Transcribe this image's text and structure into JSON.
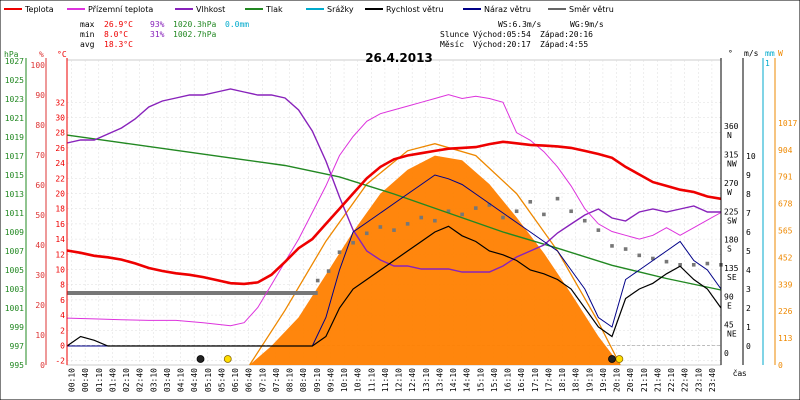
{
  "chart_data": {
    "type": "line",
    "title": "26.4.2013",
    "x_axis": {
      "label": "čas",
      "ticks": [
        "00:10",
        "00:40",
        "01:10",
        "01:40",
        "02:10",
        "02:40",
        "03:10",
        "03:40",
        "04:10",
        "04:40",
        "05:10",
        "05:40",
        "06:10",
        "06:40",
        "07:10",
        "07:40",
        "08:10",
        "08:40",
        "09:10",
        "09:40",
        "10:10",
        "10:40",
        "11:10",
        "11:40",
        "12:10",
        "12:40",
        "13:10",
        "13:40",
        "14:10",
        "14:40",
        "15:10",
        "15:40",
        "16:10",
        "16:40",
        "17:10",
        "17:40",
        "18:10",
        "18:40",
        "19:10",
        "19:40",
        "20:10",
        "20:40",
        "21:10",
        "21:40",
        "22:10",
        "22:40",
        "23:10",
        "23:40"
      ]
    },
    "legend": [
      {
        "name": "Teplota",
        "color": "#ee0000"
      },
      {
        "name": "Přízemní teplota",
        "color": "#dd33dd"
      },
      {
        "name": "Vlhkost",
        "color": "#8822bb"
      },
      {
        "name": "Tlak",
        "color": "#228822"
      },
      {
        "name": "Srážky",
        "color": "#00aacc"
      },
      {
        "name": "Rychlost větru",
        "color": "#000000"
      },
      {
        "name": "Náraz větru",
        "color": "#000088"
      },
      {
        "name": "Směr větru",
        "color": "#666666"
      }
    ],
    "stats": {
      "max": {
        "label": "max",
        "temp": "26.9°C",
        "hum": "93%",
        "press": "1020.3hPa",
        "rain": "0.0mm"
      },
      "min": {
        "label": "min",
        "temp": "8.0°C",
        "hum": "31%",
        "press": "1002.7hPa"
      },
      "avg": {
        "label": "avg",
        "temp": "18.3°C"
      }
    },
    "wind_info": {
      "ws": "WS:6.3m/s",
      "wg": "WG:9m/s"
    },
    "sun": {
      "label": "Slunce",
      "rise": "Východ:05:54",
      "set": "Západ:20:16"
    },
    "moon": {
      "label": "Měsíc",
      "rise": "Východ:20:17",
      "set": "Západ:4:55"
    },
    "axes": {
      "pressure": {
        "unit": "hPa",
        "color": "#228822",
        "ticks": [
          "1027",
          "1025",
          "1023",
          "1021",
          "1019",
          "1017",
          "1015",
          "1013",
          "1011",
          "1009",
          "1007",
          "1005",
          "1003",
          "1001",
          "999",
          "997",
          "995"
        ]
      },
      "humidity": {
        "unit": "%",
        "color": "#dd3333",
        "ticks": [
          "100",
          "90",
          "80",
          "70",
          "60",
          "50",
          "40",
          "30",
          "20",
          "10",
          "0"
        ]
      },
      "temperature": {
        "unit": "°C",
        "color": "#ee0000",
        "ticks": [
          "32",
          "30",
          "28",
          "26",
          "24",
          "22",
          "20",
          "18",
          "16",
          "14",
          "12",
          "10",
          "8",
          "6",
          "4",
          "2",
          "0",
          "-2"
        ]
      },
      "direction": {
        "unit": "°",
        "ticks": [
          "360",
          "315",
          "270",
          "225",
          "180",
          "135",
          "90",
          "45",
          "0"
        ],
        "names": [
          "N",
          "NW",
          "W",
          "SW",
          "S",
          "SE",
          "E",
          "NE"
        ]
      },
      "wind": {
        "unit": "m/s",
        "color": "#000000",
        "ticks": [
          "10",
          "9",
          "8",
          "7",
          "6",
          "5",
          "4",
          "3",
          "2",
          "1",
          "0"
        ]
      },
      "rain": {
        "unit": "mm",
        "color": "#00aacc",
        "ticks": [
          "1"
        ]
      },
      "solar": {
        "unit": "W",
        "color": "#ee8800",
        "ticks": [
          "1017",
          "904",
          "791",
          "678",
          "565",
          "452",
          "339",
          "226",
          "113",
          "0"
        ]
      }
    },
    "series": {
      "temperature": [
        [
          0,
          12.5
        ],
        [
          0.5,
          12.2
        ],
        [
          1,
          11.8
        ],
        [
          1.5,
          11.6
        ],
        [
          2,
          11.3
        ],
        [
          2.5,
          10.8
        ],
        [
          3,
          10.2
        ],
        [
          3.5,
          9.8
        ],
        [
          4,
          9.5
        ],
        [
          4.5,
          9.3
        ],
        [
          5,
          9.0
        ],
        [
          5.5,
          8.6
        ],
        [
          6,
          8.2
        ],
        [
          6.5,
          8.1
        ],
        [
          7,
          8.3
        ],
        [
          7.5,
          9.3
        ],
        [
          8,
          11.0
        ],
        [
          8.5,
          12.8
        ],
        [
          9,
          14.0
        ],
        [
          9.5,
          16.0
        ],
        [
          10,
          18.0
        ],
        [
          10.5,
          20.0
        ],
        [
          11,
          22.0
        ],
        [
          11.5,
          23.5
        ],
        [
          12,
          24.5
        ],
        [
          12.5,
          25.0
        ],
        [
          13,
          25.3
        ],
        [
          13.5,
          25.6
        ],
        [
          14,
          25.9
        ],
        [
          14.5,
          26.0
        ],
        [
          15,
          26.1
        ],
        [
          15.5,
          26.5
        ],
        [
          16,
          26.8
        ],
        [
          16.5,
          26.6
        ],
        [
          17,
          26.4
        ],
        [
          17.5,
          26.3
        ],
        [
          18,
          26.2
        ],
        [
          18.5,
          26.0
        ],
        [
          19,
          25.6
        ],
        [
          19.5,
          25.2
        ],
        [
          20,
          24.7
        ],
        [
          20.5,
          23.5
        ],
        [
          21,
          22.5
        ],
        [
          21.5,
          21.5
        ],
        [
          22,
          21.0
        ],
        [
          22.5,
          20.5
        ],
        [
          23,
          20.2
        ],
        [
          23.5,
          19.6
        ],
        [
          24,
          19.3
        ]
      ],
      "ground_temperature": [
        [
          0,
          3.6
        ],
        [
          1,
          3.5
        ],
        [
          2,
          3.4
        ],
        [
          3,
          3.3
        ],
        [
          4,
          3.3
        ],
        [
          5,
          3.0
        ],
        [
          5.5,
          2.8
        ],
        [
          6,
          2.6
        ],
        [
          6.5,
          3.0
        ],
        [
          7,
          5.0
        ],
        [
          7.5,
          8.0
        ],
        [
          8,
          11.0
        ],
        [
          8.5,
          14.0
        ],
        [
          9,
          17.5
        ],
        [
          9.5,
          21.0
        ],
        [
          10,
          25.0
        ],
        [
          10.5,
          27.5
        ],
        [
          11,
          29.5
        ],
        [
          11.5,
          30.5
        ],
        [
          12,
          31.0
        ],
        [
          12.5,
          31.5
        ],
        [
          13,
          32.0
        ],
        [
          13.5,
          32.5
        ],
        [
          14,
          33.0
        ],
        [
          14.5,
          32.5
        ],
        [
          15,
          32.8
        ],
        [
          15.5,
          32.5
        ],
        [
          16,
          32.0
        ],
        [
          16.5,
          28.0
        ],
        [
          17,
          27.0
        ],
        [
          17.5,
          25.5
        ],
        [
          18,
          23.5
        ],
        [
          18.5,
          21.0
        ],
        [
          19,
          18.0
        ],
        [
          19.5,
          16.0
        ],
        [
          20,
          15.0
        ],
        [
          20.5,
          14.5
        ],
        [
          21,
          14.0
        ],
        [
          21.5,
          14.5
        ],
        [
          22,
          15.5
        ],
        [
          22.5,
          14.5
        ],
        [
          23,
          15.5
        ],
        [
          23.5,
          16.5
        ],
        [
          24,
          17.5
        ]
      ],
      "humidity": [
        [
          0,
          74
        ],
        [
          0.5,
          75
        ],
        [
          1,
          75
        ],
        [
          1.5,
          77
        ],
        [
          2,
          79
        ],
        [
          2.5,
          82
        ],
        [
          3,
          86
        ],
        [
          3.5,
          88
        ],
        [
          4,
          89
        ],
        [
          4.5,
          90
        ],
        [
          5,
          90
        ],
        [
          5.5,
          91
        ],
        [
          6,
          92
        ],
        [
          6.5,
          91
        ],
        [
          7,
          90
        ],
        [
          7.5,
          90
        ],
        [
          8,
          89
        ],
        [
          8.5,
          85
        ],
        [
          9,
          78
        ],
        [
          9.5,
          68
        ],
        [
          10,
          56
        ],
        [
          10.5,
          45
        ],
        [
          11,
          38
        ],
        [
          11.5,
          35
        ],
        [
          12,
          33
        ],
        [
          12.5,
          33
        ],
        [
          13,
          32
        ],
        [
          13.5,
          32
        ],
        [
          14,
          32
        ],
        [
          14.5,
          31
        ],
        [
          15,
          31
        ],
        [
          15.5,
          31
        ],
        [
          16,
          33
        ],
        [
          16.5,
          36
        ],
        [
          17,
          38
        ],
        [
          17.5,
          40
        ],
        [
          18,
          44
        ],
        [
          18.5,
          47
        ],
        [
          19,
          50
        ],
        [
          19.5,
          52
        ],
        [
          20,
          49
        ],
        [
          20.5,
          48
        ],
        [
          21,
          51
        ],
        [
          21.5,
          52
        ],
        [
          22,
          51
        ],
        [
          22.5,
          52
        ],
        [
          23,
          53
        ],
        [
          23.5,
          51
        ],
        [
          24,
          51
        ]
      ],
      "pressure": [
        [
          0,
          1019.2
        ],
        [
          2,
          1018.4
        ],
        [
          4,
          1017.6
        ],
        [
          6,
          1016.8
        ],
        [
          8,
          1016.0
        ],
        [
          10,
          1014.8
        ],
        [
          12,
          1013.0
        ],
        [
          14,
          1011.0
        ],
        [
          16,
          1009.0
        ],
        [
          18,
          1007.3
        ],
        [
          20,
          1005.5
        ],
        [
          22,
          1004.1
        ],
        [
          24,
          1002.9
        ]
      ],
      "wind_speed": [
        [
          0,
          0.0
        ],
        [
          0.5,
          0.5
        ],
        [
          1,
          0.3
        ],
        [
          1.5,
          0
        ],
        [
          9,
          0
        ],
        [
          9.5,
          0.5
        ],
        [
          10,
          2.0
        ],
        [
          10.5,
          3.0
        ],
        [
          11,
          3.5
        ],
        [
          11.5,
          4.0
        ],
        [
          12,
          4.5
        ],
        [
          12.5,
          5.0
        ],
        [
          13,
          5.5
        ],
        [
          13.5,
          6.0
        ],
        [
          14,
          6.3
        ],
        [
          14.5,
          5.8
        ],
        [
          15,
          5.5
        ],
        [
          15.5,
          5.0
        ],
        [
          16,
          4.8
        ],
        [
          16.5,
          4.5
        ],
        [
          17,
          4.0
        ],
        [
          17.5,
          3.8
        ],
        [
          18,
          3.5
        ],
        [
          18.5,
          3.0
        ],
        [
          19,
          2.0
        ],
        [
          19.5,
          1.0
        ],
        [
          20,
          0.5
        ],
        [
          20.5,
          2.5
        ],
        [
          21,
          3.0
        ],
        [
          21.5,
          3.3
        ],
        [
          22,
          3.8
        ],
        [
          22.5,
          4.2
        ],
        [
          23,
          3.5
        ],
        [
          23.5,
          3.0
        ],
        [
          24,
          2.0
        ]
      ],
      "wind_gust": [
        [
          0,
          0
        ],
        [
          9,
          0
        ],
        [
          9.5,
          1.5
        ],
        [
          10,
          4.0
        ],
        [
          10.5,
          6.0
        ],
        [
          11,
          6.5
        ],
        [
          11.5,
          7.0
        ],
        [
          12,
          7.5
        ],
        [
          12.5,
          8.0
        ],
        [
          13,
          8.5
        ],
        [
          13.5,
          9.0
        ],
        [
          14,
          8.8
        ],
        [
          14.5,
          8.5
        ],
        [
          15,
          8.0
        ],
        [
          15.5,
          7.5
        ],
        [
          16,
          7.0
        ],
        [
          16.5,
          6.5
        ],
        [
          17,
          6.0
        ],
        [
          17.5,
          5.5
        ],
        [
          18,
          5.0
        ],
        [
          18.5,
          4.0
        ],
        [
          19,
          3.0
        ],
        [
          19.5,
          1.5
        ],
        [
          20,
          1.0
        ],
        [
          20.5,
          3.5
        ],
        [
          21,
          4.0
        ],
        [
          21.5,
          4.5
        ],
        [
          22,
          5.0
        ],
        [
          22.5,
          5.5
        ],
        [
          23,
          4.5
        ],
        [
          23.5,
          4.0
        ],
        [
          24,
          3.0
        ]
      ],
      "wind_direction": [
        [
          9.2,
          115
        ],
        [
          9.6,
          130
        ],
        [
          10.0,
          160
        ],
        [
          10.5,
          175
        ],
        [
          11.0,
          190
        ],
        [
          11.5,
          200
        ],
        [
          12.0,
          195
        ],
        [
          12.5,
          205
        ],
        [
          13.0,
          215
        ],
        [
          13.5,
          210
        ],
        [
          14.0,
          225
        ],
        [
          14.5,
          220
        ],
        [
          15.0,
          230
        ],
        [
          15.5,
          235
        ],
        [
          16.0,
          215
        ],
        [
          16.5,
          225
        ],
        [
          17.0,
          240
        ],
        [
          17.5,
          220
        ],
        [
          18.0,
          245
        ],
        [
          18.5,
          225
        ],
        [
          19.0,
          210
        ],
        [
          19.5,
          195
        ],
        [
          20.0,
          170
        ],
        [
          20.5,
          165
        ],
        [
          21.0,
          155
        ],
        [
          21.5,
          150
        ],
        [
          22.0,
          145
        ],
        [
          22.5,
          140
        ],
        [
          23.0,
          140
        ],
        [
          23.5,
          142
        ],
        [
          24.0,
          140
        ]
      ],
      "solar": [
        [
          6.7,
          0
        ],
        [
          7.5,
          80
        ],
        [
          8.5,
          200
        ],
        [
          9.5,
          380
        ],
        [
          10.5,
          560
        ],
        [
          11.5,
          720
        ],
        [
          12.5,
          820
        ],
        [
          13.5,
          880
        ],
        [
          14.5,
          860
        ],
        [
          15.5,
          760
        ],
        [
          16.5,
          620
        ],
        [
          17.5,
          470
        ],
        [
          18.5,
          300
        ],
        [
          19.5,
          120
        ],
        [
          20.3,
          0
        ]
      ],
      "solar_theoretical": [
        [
          6.7,
          0
        ],
        [
          8,
          230
        ],
        [
          9.5,
          520
        ],
        [
          11,
          760
        ],
        [
          12.5,
          900
        ],
        [
          13.5,
          930
        ],
        [
          15,
          880
        ],
        [
          16.5,
          720
        ],
        [
          18,
          480
        ],
        [
          19.5,
          180
        ],
        [
          20.3,
          0
        ]
      ],
      "rain": []
    }
  }
}
